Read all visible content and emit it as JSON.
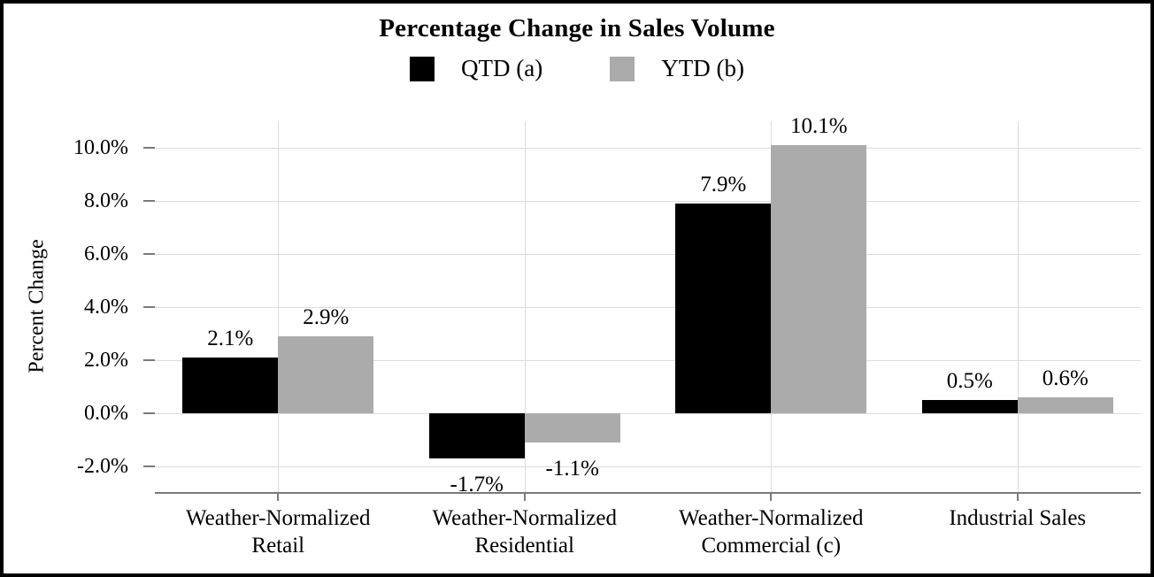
{
  "chart_data": {
    "type": "bar",
    "title": "Percentage Change in Sales Volume",
    "ylabel": "Percent Change",
    "xlabel": "",
    "categories": [
      "Weather-Normalized Retail",
      "Weather-Normalized Residential",
      "Weather-Normalized Commercial (c)",
      "Industrial Sales"
    ],
    "series": [
      {
        "name": "QTD (a)",
        "color": "#000000",
        "values": [
          2.1,
          -1.7,
          7.9,
          0.5
        ],
        "value_labels": [
          "2.1%",
          "-1.7%",
          "7.9%",
          "0.5%"
        ]
      },
      {
        "name": "YTD (b)",
        "color": "#ababab",
        "values": [
          2.9,
          -1.1,
          10.1,
          0.6
        ],
        "value_labels": [
          "2.9%",
          "-1.1%",
          "10.1%",
          "0.6%"
        ]
      }
    ],
    "ylim": [
      -3,
      11
    ],
    "yticks": [
      {
        "value": 10,
        "label": "10.0%"
      },
      {
        "value": 8,
        "label": "8.0%"
      },
      {
        "value": 6,
        "label": "6.0%"
      },
      {
        "value": 4,
        "label": "4.0%"
      },
      {
        "value": 2,
        "label": "2.0%"
      },
      {
        "value": 0,
        "label": "0.0%"
      },
      {
        "value": -2,
        "label": "-2.0%"
      }
    ],
    "grid": true,
    "legend_position": "top-center",
    "colors": {
      "background": "#ffffff",
      "border": "#000000",
      "grid": "#dcdcdc",
      "axis": "#7a7a7a",
      "text": "#000000"
    }
  }
}
